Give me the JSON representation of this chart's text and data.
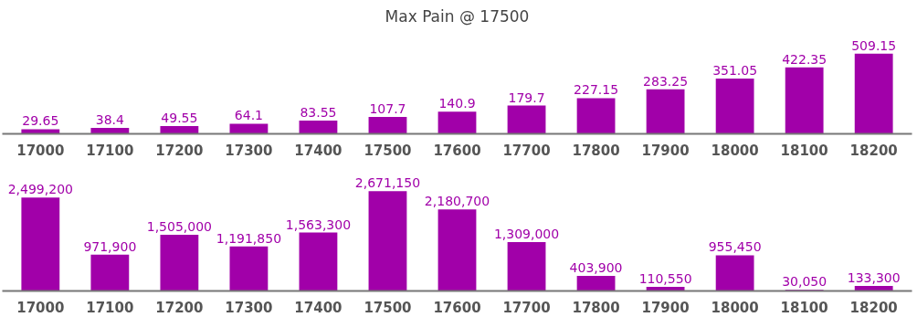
{
  "chart_data": [
    {
      "type": "bar",
      "title": "Max Pain @ 17500",
      "categories": [
        "17000",
        "17100",
        "17200",
        "17300",
        "17400",
        "17500",
        "17600",
        "17700",
        "17800",
        "17900",
        "18000",
        "18100",
        "18200"
      ],
      "values": [
        29.65,
        38.4,
        49.55,
        64.1,
        83.55,
        107.7,
        140.9,
        179.7,
        227.15,
        283.25,
        351.05,
        422.35,
        509.15
      ],
      "color": "#a100a9",
      "data_labels": true
    },
    {
      "type": "bar",
      "categories": [
        "17000",
        "17100",
        "17200",
        "17300",
        "17400",
        "17500",
        "17600",
        "17700",
        "17800",
        "17900",
        "18000",
        "18100",
        "18200"
      ],
      "values": [
        2499200,
        971900,
        1505000,
        1191850,
        1563300,
        2671150,
        2180700,
        1309000,
        403900,
        110550,
        955450,
        30050,
        133300
      ],
      "color": "#a100a9",
      "value_labels": [
        "2,499,200",
        "971,900",
        "1,505,000",
        "1,191,850",
        "1,563,300",
        "2,671,150",
        "2,180,700",
        "1,309,000",
        "403,900",
        "110,550",
        "955,450",
        "30,050",
        "133,300"
      ]
    }
  ]
}
